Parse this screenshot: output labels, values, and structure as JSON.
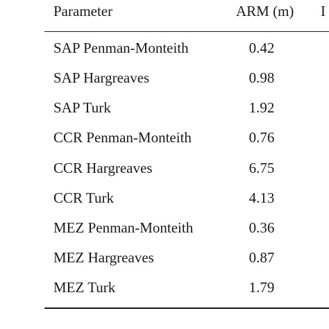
{
  "table": {
    "header": {
      "parameter": "Parameter",
      "arm": "ARM  (m)",
      "clipped": "I"
    },
    "rows": [
      {
        "name": "SAP Penman-Monteith",
        "arm": "0.42"
      },
      {
        "name": "SAP Hargreaves",
        "arm": "0.98"
      },
      {
        "name": "SAP Turk",
        "arm": "1.92"
      },
      {
        "name": "CCR Penman-Monteith",
        "arm": "0.76"
      },
      {
        "name": "CCR Hargreaves",
        "arm": "6.75"
      },
      {
        "name": "CCR Turk",
        "arm": "4.13"
      },
      {
        "name": "MEZ Penman-Monteith",
        "arm": "0.36"
      },
      {
        "name": "MEZ Hargreaves",
        "arm": "0.87"
      },
      {
        "name": "MEZ Turk",
        "arm": "1.79"
      }
    ]
  }
}
